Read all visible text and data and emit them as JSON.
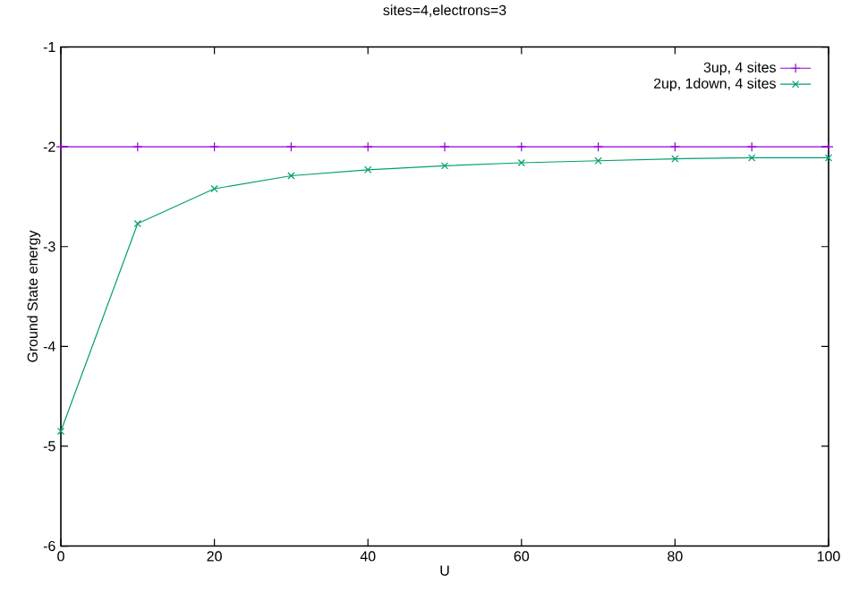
{
  "chart_data": {
    "type": "line",
    "title": "sites=4,electrons=3",
    "xlabel": "U",
    "ylabel": "Ground State energy",
    "x": [
      0,
      10,
      20,
      30,
      40,
      50,
      60,
      70,
      80,
      90,
      100
    ],
    "series": [
      {
        "name": "3up, 4 sites",
        "color": "#9400d3",
        "marker": "plus",
        "values": [
          -2,
          -2,
          -2,
          -2,
          -2,
          -2,
          -2,
          -2,
          -2,
          -2,
          -2
        ]
      },
      {
        "name": "2up, 1down, 4 sites",
        "color": "#009e73",
        "marker": "cross",
        "values": [
          -4.85,
          -2.77,
          -2.42,
          -2.29,
          -2.23,
          -2.19,
          -2.16,
          -2.14,
          -2.12,
          -2.11,
          -2.11
        ]
      }
    ],
    "xlim": [
      0,
      100
    ],
    "xticks": [
      0,
      20,
      40,
      60,
      80,
      100
    ],
    "ylim": [
      -6,
      -1
    ],
    "yticks": [
      -6,
      -5,
      -4,
      -3,
      -2,
      -1
    ],
    "grid": false,
    "legend": "top right",
    "line_style": "solid"
  }
}
